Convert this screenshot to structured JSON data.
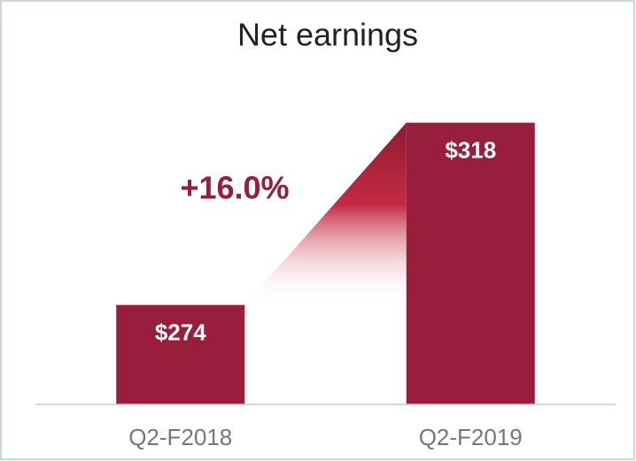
{
  "chart_data": {
    "type": "bar",
    "title": "Net earnings",
    "categories": [
      "Q2-F2018",
      "Q2-F2019"
    ],
    "values": [
      274,
      318
    ],
    "value_labels": [
      "$274",
      "$318"
    ],
    "color": "#981e3c",
    "annotation": "+16.0%",
    "ylim": [
      250,
      330
    ]
  }
}
